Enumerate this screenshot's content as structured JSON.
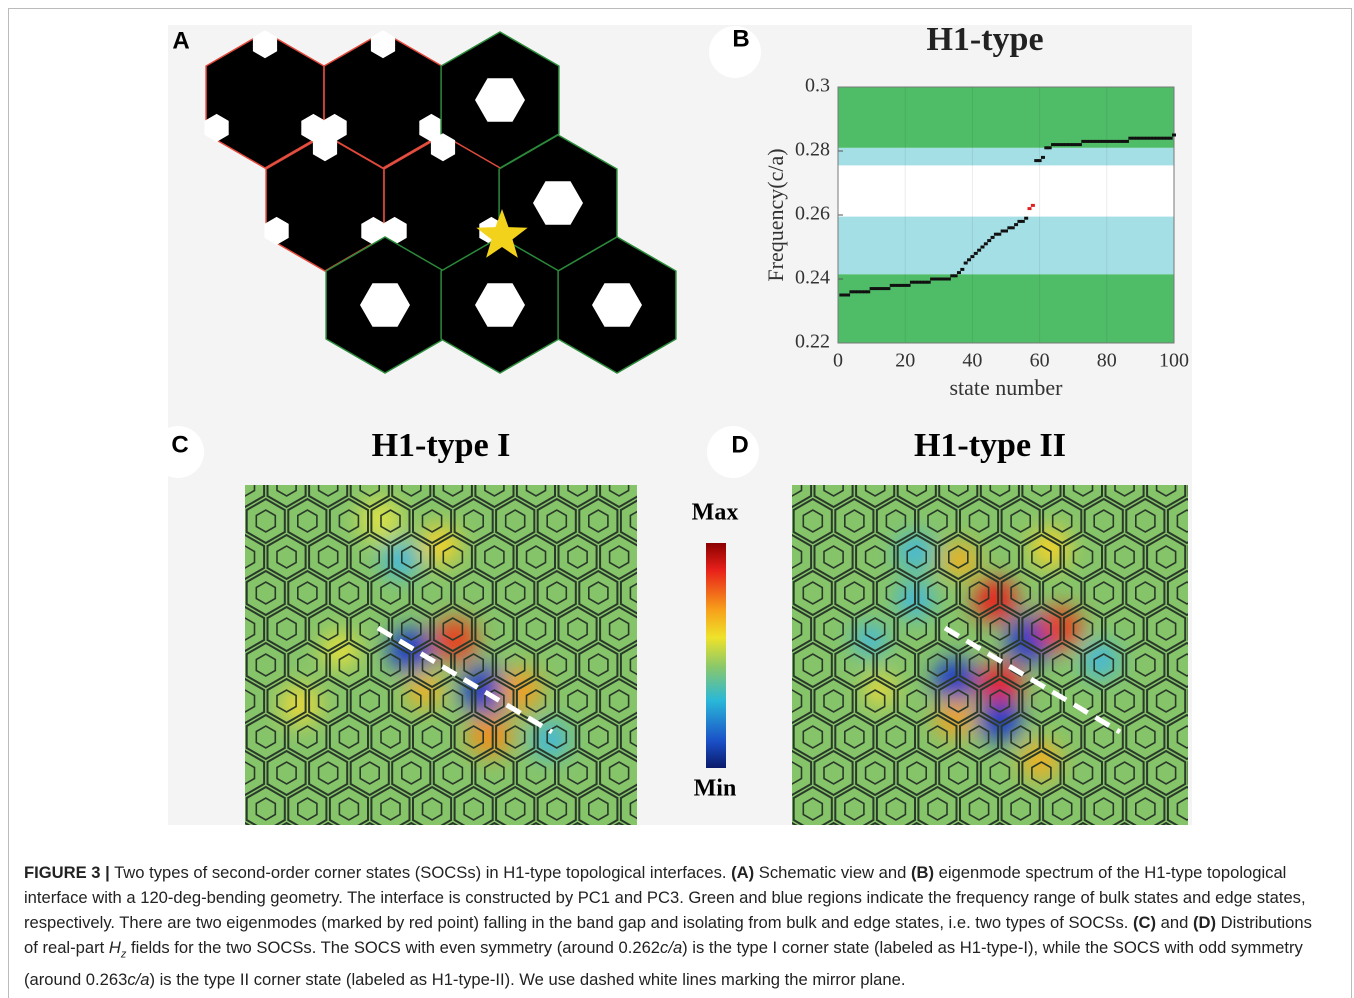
{
  "panel_labels": [
    "A",
    "B",
    "C",
    "D"
  ],
  "chart_data": {
    "type": "scatter",
    "title": "H1-type",
    "x_label": "state number",
    "y_label": "Frequency(c/a)",
    "xlim": [
      0,
      100
    ],
    "ylim": [
      0.22,
      0.3
    ],
    "xticks": [
      0,
      20,
      40,
      60,
      80,
      100
    ],
    "yticks": [
      0.22,
      0.24,
      0.26,
      0.28,
      0.3
    ],
    "grid": true,
    "bands": [
      {
        "range": [
          0.22,
          0.2415
        ],
        "color": "#4fbd68"
      },
      {
        "range": [
          0.2415,
          0.2595
        ],
        "color": "#a5dfe6"
      },
      {
        "range": [
          0.2755,
          0.281
        ],
        "color": "#a5dfe6"
      },
      {
        "range": [
          0.281,
          0.3
        ],
        "color": "#4fbd68"
      }
    ],
    "series": [
      {
        "color": "#111111",
        "x": [
          1,
          2,
          3,
          4,
          5,
          6,
          7,
          8,
          9,
          10,
          11,
          12,
          13,
          14,
          15,
          16,
          17,
          18,
          19,
          20,
          21,
          22,
          23,
          24,
          25,
          26,
          27,
          28,
          29,
          30,
          31,
          32,
          33,
          34,
          35,
          36,
          37,
          38,
          39,
          40,
          41,
          42,
          43,
          44,
          45,
          46,
          47,
          48,
          49,
          50,
          51,
          52,
          53,
          54,
          55,
          56,
          59,
          60,
          61,
          62,
          63,
          64,
          65,
          66,
          67,
          68,
          69,
          70,
          71,
          72,
          73,
          74,
          75,
          76,
          77,
          78,
          79,
          80,
          81,
          82,
          83,
          84,
          85,
          86,
          87,
          88,
          89,
          90,
          91,
          92,
          93,
          94,
          95,
          96,
          97,
          98,
          99,
          100
        ],
        "values": [
          0.235,
          0.235,
          0.235,
          0.236,
          0.236,
          0.236,
          0.236,
          0.236,
          0.236,
          0.237,
          0.237,
          0.237,
          0.237,
          0.237,
          0.237,
          0.238,
          0.238,
          0.238,
          0.238,
          0.238,
          0.238,
          0.239,
          0.239,
          0.239,
          0.239,
          0.239,
          0.239,
          0.24,
          0.24,
          0.24,
          0.24,
          0.24,
          0.24,
          0.241,
          0.241,
          0.242,
          0.243,
          0.245,
          0.246,
          0.247,
          0.248,
          0.249,
          0.25,
          0.251,
          0.252,
          0.253,
          0.254,
          0.254,
          0.255,
          0.255,
          0.256,
          0.256,
          0.257,
          0.258,
          0.258,
          0.259,
          0.277,
          0.277,
          0.278,
          0.281,
          0.281,
          0.282,
          0.282,
          0.282,
          0.282,
          0.282,
          0.282,
          0.282,
          0.282,
          0.282,
          0.283,
          0.283,
          0.283,
          0.283,
          0.283,
          0.283,
          0.283,
          0.283,
          0.283,
          0.283,
          0.283,
          0.283,
          0.283,
          0.283,
          0.284,
          0.284,
          0.284,
          0.284,
          0.284,
          0.284,
          0.284,
          0.284,
          0.284,
          0.284,
          0.284,
          0.284,
          0.284,
          0.285
        ]
      },
      {
        "color": "#e02020",
        "x": [
          57,
          58
        ],
        "values": [
          0.262,
          0.263
        ]
      }
    ]
  },
  "field_maps": [
    {
      "title": "H1-type I"
    },
    {
      "title": "H1-type II"
    }
  ],
  "colorbar": {
    "max_label": "Max",
    "min_label": "Min"
  },
  "caption": [
    "FIGURE 3 |",
    " Two types of second-order corner states (SOCSs) in H1-type topological interfaces. ",
    "(A)",
    " Schematic view and ",
    "(B)",
    " eigenmode spectrum of the H1-type topological interface with a 120-deg-bending geometry. The interface is constructed by PC1 and PC3. Green and blue regions indicate the frequency range of bulk states and edge states, respectively. There are two eigenmodes (marked by red point) falling in the band gap and isolating from bulk and edge states, i.e. two types of SOCSs. ",
    "(C)",
    " and ",
    "(D)",
    " Distributions of real-part ",
    "H",
    "z",
    " fields for the two SOCSs. The SOCS with even symmetry (around 0.262",
    "c/a",
    ") is the type I corner state (labeled as H1-type-I), while the SOCS with odd symmetry (around 0.263",
    "c/a",
    ") is the type II corner state (labeled as H1-type-II). We use dashed white lines marking the mirror plane."
  ]
}
